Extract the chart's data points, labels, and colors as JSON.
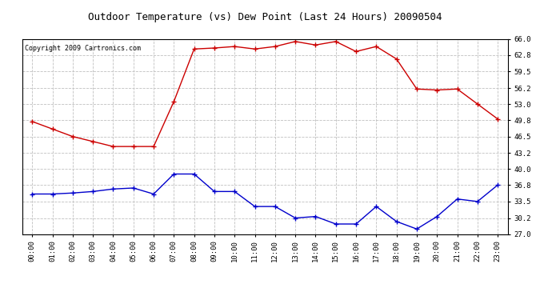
{
  "title": "Outdoor Temperature (vs) Dew Point (Last 24 Hours) 20090504",
  "copyright_text": "Copyright 2009 Cartronics.com",
  "hours": [
    "00:00",
    "01:00",
    "02:00",
    "03:00",
    "04:00",
    "05:00",
    "06:00",
    "07:00",
    "08:00",
    "09:00",
    "10:00",
    "11:00",
    "12:00",
    "13:00",
    "14:00",
    "15:00",
    "16:00",
    "17:00",
    "18:00",
    "19:00",
    "20:00",
    "21:00",
    "22:00",
    "23:00"
  ],
  "temp_red": [
    49.5,
    48.0,
    46.5,
    45.5,
    44.5,
    44.5,
    44.5,
    53.5,
    64.0,
    64.2,
    64.5,
    64.0,
    64.5,
    65.5,
    64.8,
    65.5,
    63.5,
    64.5,
    62.0,
    56.0,
    55.8,
    56.0,
    53.0,
    50.0
  ],
  "dew_blue": [
    35.0,
    35.0,
    35.2,
    35.5,
    36.0,
    36.2,
    35.0,
    39.0,
    39.0,
    35.5,
    35.5,
    32.5,
    32.5,
    30.2,
    30.5,
    29.0,
    29.0,
    32.5,
    29.5,
    28.0,
    30.5,
    34.0,
    33.5,
    36.8
  ],
  "ylim_min": 27.0,
  "ylim_max": 66.0,
  "yticks": [
    27.0,
    30.2,
    33.5,
    36.8,
    40.0,
    43.2,
    46.5,
    49.8,
    53.0,
    56.2,
    59.5,
    62.8,
    66.0
  ],
  "ytick_labels": [
    "27.0",
    "30.2",
    "33.5",
    "36.8",
    "40.0",
    "43.2",
    "46.5",
    "49.8",
    "53.0",
    "56.2",
    "59.5",
    "62.8",
    "66.0"
  ],
  "red_color": "#cc0000",
  "blue_color": "#0000cc",
  "bg_color": "#ffffff",
  "grid_color": "#c0c0c0",
  "title_fontsize": 9,
  "copyright_fontsize": 6,
  "tick_fontsize": 6.5
}
